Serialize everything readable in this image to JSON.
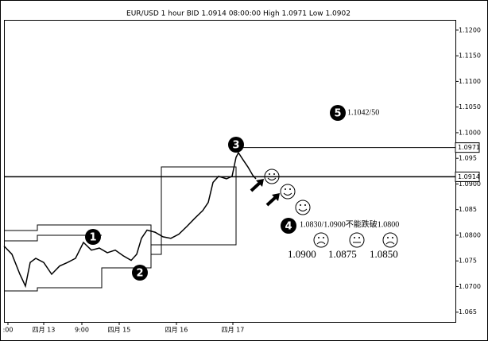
{
  "chart_data": {
    "type": "line",
    "title": "EUR/USD 1 hour BID 1.0914 08:00:00 High 1.0971 Low 1.0902",
    "x": [
      0,
      5,
      10,
      13.5,
      16.5,
      20,
      25,
      30,
      35,
      40,
      45,
      50,
      55,
      60,
      65,
      70,
      75,
      80,
      83.5,
      86.5,
      90,
      95,
      100,
      105,
      110,
      115,
      120,
      125,
      128.5,
      131.5,
      135,
      140,
      143.5,
      146,
      147.5,
      150,
      153.5,
      156.5,
      158.5
    ],
    "series": [
      {
        "name": "EUR/USD",
        "color": "#000000",
        "values": [
          1.0779,
          1.0763,
          1.0724,
          1.0701,
          1.0747,
          1.0755,
          1.0747,
          1.0724,
          1.074,
          1.0747,
          1.0755,
          1.0786,
          1.0771,
          1.0775,
          1.0766,
          1.0771,
          1.076,
          1.0751,
          1.0763,
          1.0794,
          1.081,
          1.0806,
          1.0797,
          1.0794,
          1.0802,
          1.0817,
          1.0833,
          1.0848,
          1.0864,
          1.0903,
          1.0915,
          1.091,
          1.0915,
          1.0952,
          1.0961,
          1.0949,
          1.0933,
          1.0917,
          1.091
        ]
      }
    ],
    "xlim": [
      0,
      284
    ],
    "xticks": [
      {
        "value": 2.5,
        "label": ":00"
      },
      {
        "value": 25,
        "label": "四月 13"
      },
      {
        "value": 49,
        "label": "9:00"
      },
      {
        "value": 72.5,
        "label": "四月 15"
      },
      {
        "value": 108.5,
        "label": "四月 16"
      },
      {
        "value": 144,
        "label": "四月 17"
      }
    ],
    "ylim": [
      1.0631,
      1.122
    ],
    "yticks": [
      {
        "value": 1.12,
        "label": "1.1200"
      },
      {
        "value": 1.115,
        "label": "1.1150"
      },
      {
        "value": 1.11,
        "label": "1.1100"
      },
      {
        "value": 1.105,
        "label": "1.1050"
      },
      {
        "value": 1.1,
        "label": "1.1000"
      },
      1.095,
      {
        "value": 1.09,
        "label": "1.0900"
      },
      1.085,
      {
        "value": 1.08,
        "label": "1.0800"
      },
      1.075,
      {
        "value": 1.07,
        "label": "1.0700"
      },
      1.065
    ],
    "price_markers": [
      1.0971,
      1.0914
    ],
    "annotations": [
      {
        "label": "1"
      },
      {
        "label": "2"
      },
      {
        "label": "3"
      },
      {
        "label": "4"
      },
      {
        "label": "5"
      },
      {
        "text": "1.1042/50"
      },
      {
        "text": "1.0830/1.0900不能跌破1.0800"
      },
      {
        "text": "1.0900"
      },
      {
        "text": "1.0875"
      },
      {
        "text": "1.0850"
      }
    ]
  }
}
